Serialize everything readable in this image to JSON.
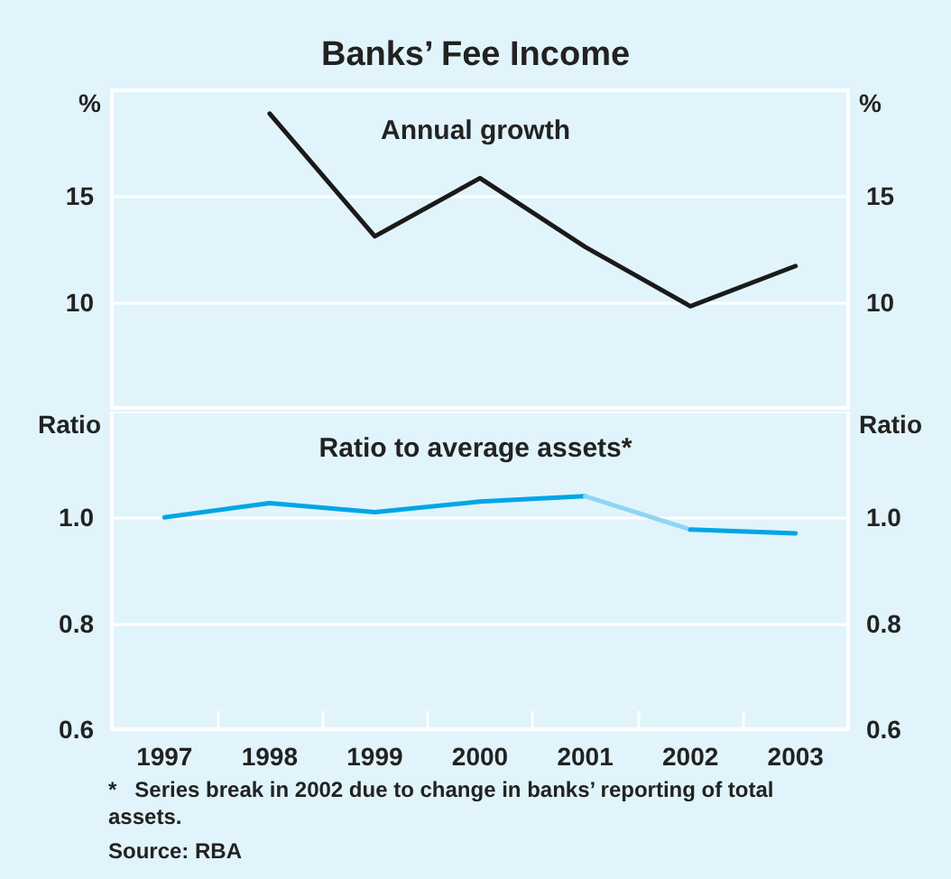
{
  "chart_data": [
    {
      "type": "line",
      "title": "Banks’ Fee Income",
      "subtitle": "Annual growth",
      "ylabel": "%",
      "y2label": "%",
      "categories": [
        "1997",
        "1998",
        "1999",
        "2000",
        "2001",
        "2002",
        "2003"
      ],
      "series": [
        {
          "color": "#1a1a1a",
          "values": [
            null,
            18.9,
            13.1,
            15.85,
            12.6,
            9.8,
            11.7
          ]
        }
      ],
      "ylim": [
        5,
        20
      ],
      "yticks": [
        10,
        15
      ],
      "y2lim": [
        5,
        20
      ],
      "y2ticks": [
        10,
        15
      ],
      "grid": "y",
      "marker": "none",
      "line_style": "solid",
      "tick_labels": "y"
    },
    {
      "type": "line",
      "title": "Ratio to average assets*",
      "ylabel": "Ratio",
      "y2label": "Ratio",
      "categories": [
        "1997",
        "1998",
        "1999",
        "2000",
        "2001",
        "2002",
        "2003"
      ],
      "series": [
        {
          "color": "#00a6e6",
          "values": [
            1.0,
            1.027,
            1.01,
            1.03,
            1.04,
            null,
            null
          ]
        },
        {
          "color": "#8fd6f2",
          "values": [
            null,
            null,
            null,
            null,
            1.04,
            0.977,
            null
          ]
        },
        {
          "color": "#00a6e6",
          "values": [
            null,
            null,
            null,
            null,
            null,
            0.977,
            0.97
          ]
        }
      ],
      "ylim": [
        0.6,
        1.2
      ],
      "yticks": [
        0.6,
        0.8,
        {
          "value": 1.0,
          "label": "1.0"
        }
      ],
      "y2lim": [
        0.6,
        1.2
      ],
      "y2ticks": [
        0.6,
        0.8,
        {
          "value": 1.0,
          "label": "1.0"
        }
      ],
      "grid": "y",
      "marker": "none",
      "line_style": "solid",
      "annotations": [
        "*   Series break in 2002 due to change in banks’ reporting of total assets.",
        "Source: RBA"
      ]
    }
  ]
}
